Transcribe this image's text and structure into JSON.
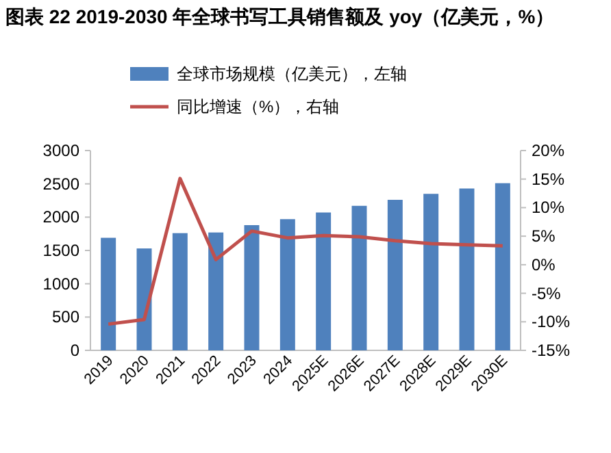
{
  "chart_data": {
    "type": "bar",
    "title": "图表 22  2019-2030 年全球书写工具销售额及 yoy（亿美元，%）",
    "categories": [
      "2019",
      "2020",
      "2021",
      "2022",
      "2023",
      "2024",
      "2025E",
      "2026E",
      "2027E",
      "2028E",
      "2029E",
      "2030E"
    ],
    "series": [
      {
        "name": "全球市场规模（亿美元），左轴",
        "color": "#4f81bd",
        "values": [
          1690,
          1530,
          1760,
          1770,
          1880,
          1970,
          2070,
          2170,
          2260,
          2350,
          2430,
          2510
        ]
      },
      {
        "name": "同比增速（%），右轴",
        "type": "line",
        "axis": "y2",
        "color": "#c0504d",
        "values": [
          -10.4,
          -9.6,
          15.1,
          0.9,
          5.9,
          4.7,
          5.1,
          4.9,
          4.2,
          3.7,
          3.5,
          3.3
        ]
      }
    ],
    "ylim": [
      0,
      3000
    ],
    "yticks": [
      0,
      500,
      1000,
      1500,
      2000,
      2500,
      3000
    ],
    "y2lim": [
      -15,
      20
    ],
    "y2ticks": [
      {
        "value": -15,
        "label": "-15%"
      },
      {
        "value": -10,
        "label": "-10%"
      },
      {
        "value": -5,
        "label": "-5%"
      },
      {
        "value": 0,
        "label": "0%"
      },
      {
        "value": 5,
        "label": "5%"
      },
      {
        "value": 10,
        "label": "10%"
      },
      {
        "value": 15,
        "label": "15%"
      },
      {
        "value": 20,
        "label": "20%"
      }
    ],
    "legend": "top",
    "grid": false,
    "marker": "none",
    "line_style": "solid"
  }
}
